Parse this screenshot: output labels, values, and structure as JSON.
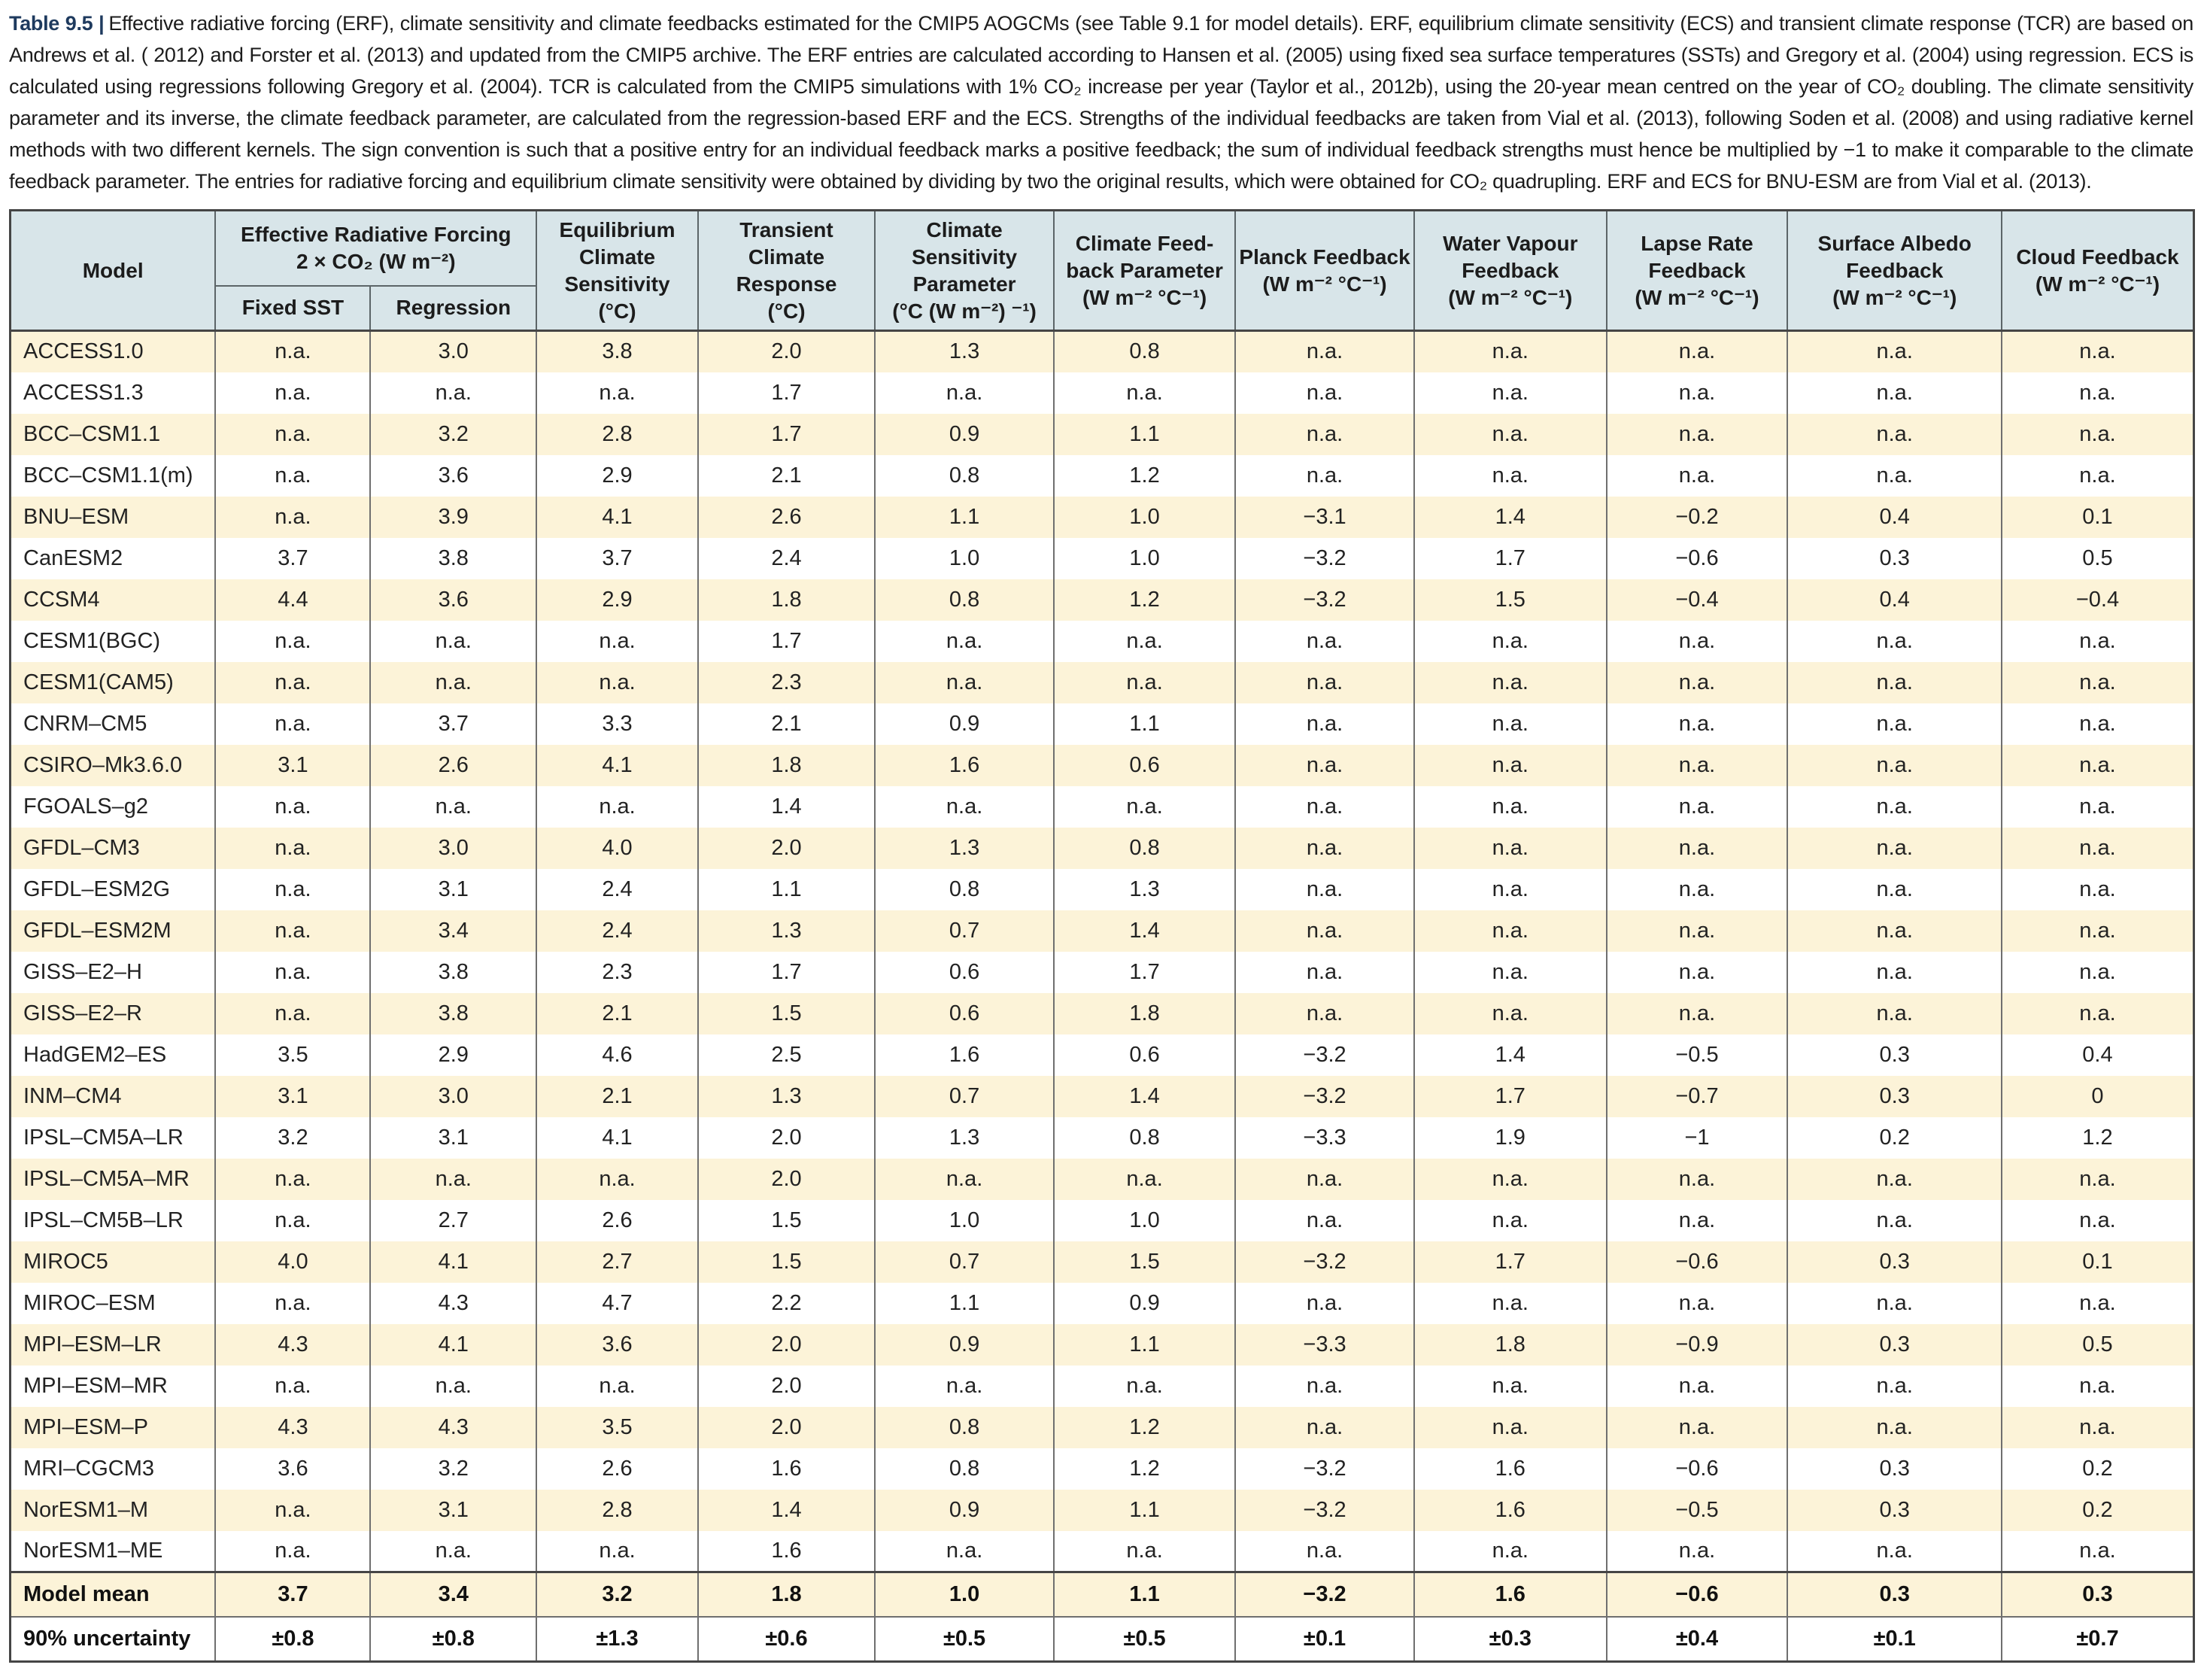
{
  "caption": {
    "label": "Table 9.5 |",
    "text": "Effective radiative forcing (ERF), climate sensitivity and climate feedbacks estimated for the CMIP5 AOGCMs (see Table 9.1 for model details). ERF, equilibrium climate sensitivity (ECS) and transient climate response (TCR) are based on Andrews et al. ( 2012) and Forster et al. (2013) and updated from the CMIP5 archive. The ERF entries are calculated according to Hansen et al. (2005) using fixed sea surface temperatures (SSTs) and Gregory et al. (2004) using regression. ECS is calculated using regressions following Gregory et al. (2004). TCR is calculated from the CMIP5 simulations with 1% CO₂ increase per year (Taylor et al., 2012b), using the 20-year mean centred on the year of CO₂ doubling. The climate sensitivity parameter and its inverse, the climate feedback parameter, are calculated from the regression-based ERF and the ECS. Strengths of the individual feedbacks are taken from Vial et al. (2013), following Soden et al. (2008) and using radiative kernel methods with two different kernels. The sign convention is such that a positive entry for an individual feedback marks a positive feedback; the sum of individual feedback strengths must hence be multiplied by −1 to make it comparable to the climate feedback parameter. The entries for radiative forcing and equilibrium climate sensitivity were obtained by dividing by two the original results, which were obtained for CO₂ quadrupling. ERF and ECS for BNU-ESM are from Vial et al. (2013)."
  },
  "colors": {
    "header_bg": "#d8e5e9",
    "row_stripe": "#fcf3d8",
    "row_plain": "#ffffff",
    "caption_label": "#1e3a5e",
    "border_dark": "#454545"
  },
  "columns": {
    "model": "Model",
    "erf_group": "Effective Radiative Forcing\n2 × CO₂ (W m⁻²)",
    "fixed_sst": "Fixed SST",
    "regression": "Regression",
    "ecs": "Equilibrium\nClimate\nSensitivity\n(°C)",
    "tcr": "Transient\nClimate\nResponse\n(°C)",
    "csp": "Climate\nSensitivity\nParameter\n(°C (W m⁻²) ⁻¹)",
    "cfp": "Climate Feed-\nback Parameter\n(W m⁻² °C⁻¹)",
    "planck": "Planck Feedback\n(W m⁻² °C⁻¹)",
    "water_vapour": "Water Vapour\nFeedback\n(W m⁻² °C⁻¹)",
    "lapse_rate": "Lapse Rate\nFeedback\n(W m⁻² °C⁻¹)",
    "surface_albedo": "Surface Albedo\nFeedback\n(W m⁻² °C⁻¹)",
    "cloud": "Cloud Feedback\n(W m⁻² °C⁻¹)"
  },
  "table": {
    "rows": [
      {
        "model": "ACCESS1.0",
        "values": [
          "n.a.",
          "3.0",
          "3.8",
          "2.0",
          "1.3",
          "0.8",
          "n.a.",
          "n.a.",
          "n.a.",
          "n.a.",
          "n.a."
        ]
      },
      {
        "model": "ACCESS1.3",
        "values": [
          "n.a.",
          "n.a.",
          "n.a.",
          "1.7",
          "n.a.",
          "n.a.",
          "n.a.",
          "n.a.",
          "n.a.",
          "n.a.",
          "n.a."
        ]
      },
      {
        "model": "BCC–CSM1.1",
        "values": [
          "n.a.",
          "3.2",
          "2.8",
          "1.7",
          "0.9",
          "1.1",
          "n.a.",
          "n.a.",
          "n.a.",
          "n.a.",
          "n.a."
        ]
      },
      {
        "model": "BCC–CSM1.1(m)",
        "values": [
          "n.a.",
          "3.6",
          "2.9",
          "2.1",
          "0.8",
          "1.2",
          "n.a.",
          "n.a.",
          "n.a.",
          "n.a.",
          "n.a."
        ]
      },
      {
        "model": "BNU–ESM",
        "values": [
          "n.a.",
          "3.9",
          "4.1",
          "2.6",
          "1.1",
          "1.0",
          "−3.1",
          "1.4",
          "−0.2",
          "0.4",
          "0.1"
        ]
      },
      {
        "model": "CanESM2",
        "values": [
          "3.7",
          "3.8",
          "3.7",
          "2.4",
          "1.0",
          "1.0",
          "−3.2",
          "1.7",
          "−0.6",
          "0.3",
          "0.5"
        ]
      },
      {
        "model": "CCSM4",
        "values": [
          "4.4",
          "3.6",
          "2.9",
          "1.8",
          "0.8",
          "1.2",
          "−3.2",
          "1.5",
          "−0.4",
          "0.4",
          "−0.4"
        ]
      },
      {
        "model": "CESM1(BGC)",
        "values": [
          "n.a.",
          "n.a.",
          "n.a.",
          "1.7",
          "n.a.",
          "n.a.",
          "n.a.",
          "n.a.",
          "n.a.",
          "n.a.",
          "n.a."
        ]
      },
      {
        "model": "CESM1(CAM5)",
        "values": [
          "n.a.",
          "n.a.",
          "n.a.",
          "2.3",
          "n.a.",
          "n.a.",
          "n.a.",
          "n.a.",
          "n.a.",
          "n.a.",
          "n.a."
        ]
      },
      {
        "model": "CNRM–CM5",
        "values": [
          "n.a.",
          "3.7",
          "3.3",
          "2.1",
          "0.9",
          "1.1",
          "n.a.",
          "n.a.",
          "n.a.",
          "n.a.",
          "n.a."
        ]
      },
      {
        "model": "CSIRO–Mk3.6.0",
        "values": [
          "3.1",
          "2.6",
          "4.1",
          "1.8",
          "1.6",
          "0.6",
          "n.a.",
          "n.a.",
          "n.a.",
          "n.a.",
          "n.a."
        ]
      },
      {
        "model": "FGOALS–g2",
        "values": [
          "n.a.",
          "n.a.",
          "n.a.",
          "1.4",
          "n.a.",
          "n.a.",
          "n.a.",
          "n.a.",
          "n.a.",
          "n.a.",
          "n.a."
        ]
      },
      {
        "model": "GFDL–CM3",
        "values": [
          "n.a.",
          "3.0",
          "4.0",
          "2.0",
          "1.3",
          "0.8",
          "n.a.",
          "n.a.",
          "n.a.",
          "n.a.",
          "n.a."
        ]
      },
      {
        "model": "GFDL–ESM2G",
        "values": [
          "n.a.",
          "3.1",
          "2.4",
          "1.1",
          "0.8",
          "1.3",
          "n.a.",
          "n.a.",
          "n.a.",
          "n.a.",
          "n.a."
        ]
      },
      {
        "model": "GFDL–ESM2M",
        "values": [
          "n.a.",
          "3.4",
          "2.4",
          "1.3",
          "0.7",
          "1.4",
          "n.a.",
          "n.a.",
          "n.a.",
          "n.a.",
          "n.a."
        ]
      },
      {
        "model": "GISS–E2–H",
        "values": [
          "n.a.",
          "3.8",
          "2.3",
          "1.7",
          "0.6",
          "1.7",
          "n.a.",
          "n.a.",
          "n.a.",
          "n.a.",
          "n.a."
        ]
      },
      {
        "model": "GISS–E2–R",
        "values": [
          "n.a.",
          "3.8",
          "2.1",
          "1.5",
          "0.6",
          "1.8",
          "n.a.",
          "n.a.",
          "n.a.",
          "n.a.",
          "n.a."
        ]
      },
      {
        "model": "HadGEM2–ES",
        "values": [
          "3.5",
          "2.9",
          "4.6",
          "2.5",
          "1.6",
          "0.6",
          "−3.2",
          "1.4",
          "−0.5",
          "0.3",
          "0.4"
        ]
      },
      {
        "model": "INM–CM4",
        "values": [
          "3.1",
          "3.0",
          "2.1",
          "1.3",
          "0.7",
          "1.4",
          "−3.2",
          "1.7",
          "−0.7",
          "0.3",
          "0"
        ]
      },
      {
        "model": "IPSL–CM5A–LR",
        "values": [
          "3.2",
          "3.1",
          "4.1",
          "2.0",
          "1.3",
          "0.8",
          "−3.3",
          "1.9",
          "−1",
          "0.2",
          "1.2"
        ]
      },
      {
        "model": "IPSL–CM5A–MR",
        "values": [
          "n.a.",
          "n.a.",
          "n.a.",
          "2.0",
          "n.a.",
          "n.a.",
          "n.a.",
          "n.a.",
          "n.a.",
          "n.a.",
          "n.a."
        ]
      },
      {
        "model": "IPSL–CM5B–LR",
        "values": [
          "n.a.",
          "2.7",
          "2.6",
          "1.5",
          "1.0",
          "1.0",
          "n.a.",
          "n.a.",
          "n.a.",
          "n.a.",
          "n.a."
        ]
      },
      {
        "model": "MIROC5",
        "values": [
          "4.0",
          "4.1",
          "2.7",
          "1.5",
          "0.7",
          "1.5",
          "−3.2",
          "1.7",
          "−0.6",
          "0.3",
          "0.1"
        ]
      },
      {
        "model": "MIROC–ESM",
        "values": [
          "n.a.",
          "4.3",
          "4.7",
          "2.2",
          "1.1",
          "0.9",
          "n.a.",
          "n.a.",
          "n.a.",
          "n.a.",
          "n.a."
        ]
      },
      {
        "model": "MPI–ESM–LR",
        "values": [
          "4.3",
          "4.1",
          "3.6",
          "2.0",
          "0.9",
          "1.1",
          "−3.3",
          "1.8",
          "−0.9",
          "0.3",
          "0.5"
        ]
      },
      {
        "model": "MPI–ESM–MR",
        "values": [
          "n.a.",
          "n.a.",
          "n.a.",
          "2.0",
          "n.a.",
          "n.a.",
          "n.a.",
          "n.a.",
          "n.a.",
          "n.a.",
          "n.a."
        ]
      },
      {
        "model": "MPI–ESM–P",
        "values": [
          "4.3",
          "4.3",
          "3.5",
          "2.0",
          "0.8",
          "1.2",
          "n.a.",
          "n.a.",
          "n.a.",
          "n.a.",
          "n.a."
        ]
      },
      {
        "model": "MRI–CGCM3",
        "values": [
          "3.6",
          "3.2",
          "2.6",
          "1.6",
          "0.8",
          "1.2",
          "−3.2",
          "1.6",
          "−0.6",
          "0.3",
          "0.2"
        ]
      },
      {
        "model": "NorESM1–M",
        "values": [
          "n.a.",
          "3.1",
          "2.8",
          "1.4",
          "0.9",
          "1.1",
          "−3.2",
          "1.6",
          "−0.5",
          "0.3",
          "0.2"
        ]
      },
      {
        "model": "NorESM1–ME",
        "values": [
          "n.a.",
          "n.a.",
          "n.a.",
          "1.6",
          "n.a.",
          "n.a.",
          "n.a.",
          "n.a.",
          "n.a.",
          "n.a.",
          "n.a."
        ]
      }
    ],
    "summary_rows": [
      {
        "model": "Model mean",
        "values": [
          "3.7",
          "3.4",
          "3.2",
          "1.8",
          "1.0",
          "1.1",
          "−3.2",
          "1.6",
          "−0.6",
          "0.3",
          "0.3"
        ]
      },
      {
        "model": "90% uncertainty",
        "values": [
          "±0.8",
          "±0.8",
          "±1.3",
          "±0.6",
          "±0.5",
          "±0.5",
          "±0.1",
          "±0.3",
          "±0.4",
          "±0.1",
          "±0.7"
        ]
      }
    ]
  }
}
